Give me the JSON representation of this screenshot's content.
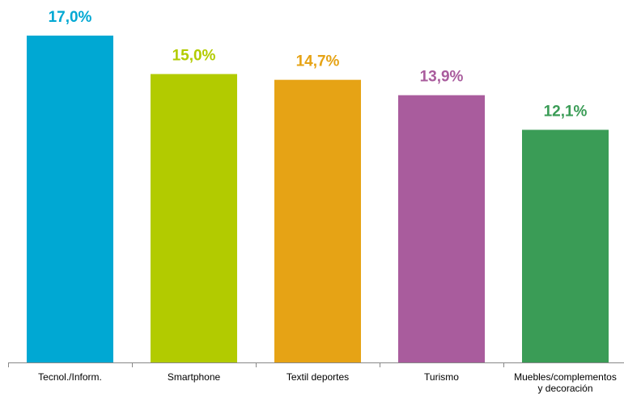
{
  "chart_data": {
    "type": "bar",
    "title": "",
    "xlabel": "",
    "ylabel": "",
    "ylim": [
      0,
      17.0
    ],
    "grid": false,
    "legend": "none",
    "categories": [
      [
        "Tecnol./Inform."
      ],
      [
        "Smartphone"
      ],
      [
        "Textil deportes"
      ],
      [
        "Turismo"
      ],
      [
        "Muebles/complementos",
        "y decoración"
      ]
    ],
    "values": [
      17.0,
      15.0,
      14.7,
      13.9,
      12.1
    ],
    "value_labels": [
      "17,0%",
      "15,0%",
      "14,7%",
      "13,9%",
      "12,1%"
    ],
    "colors": [
      "#00a8d3",
      "#b2cb00",
      "#e6a315",
      "#a95c9d",
      "#3a9c56"
    ]
  }
}
